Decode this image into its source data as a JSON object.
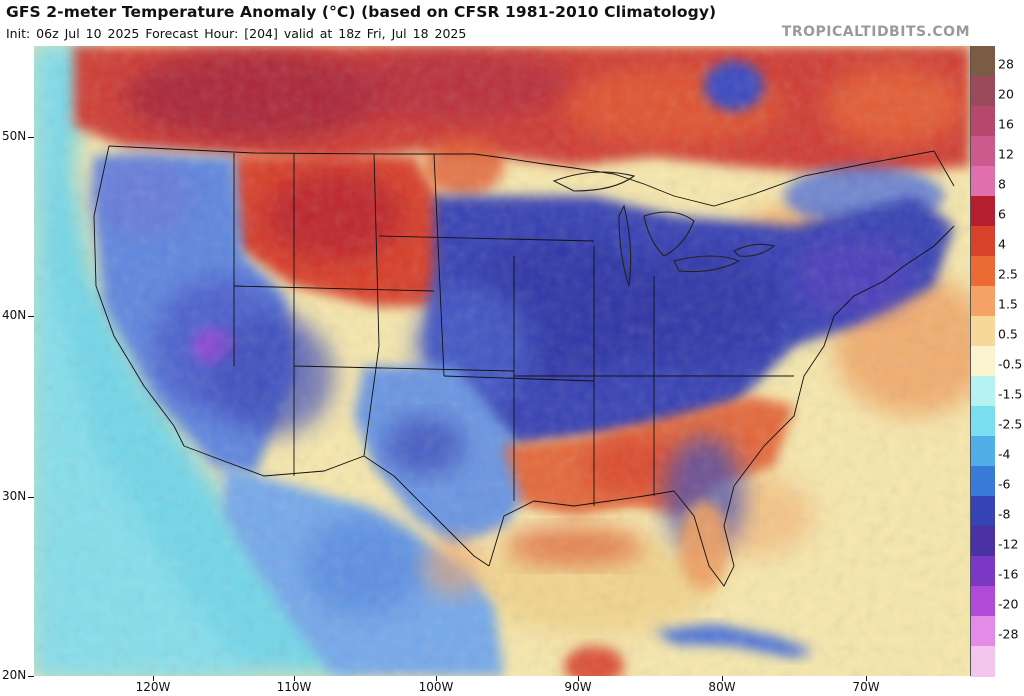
{
  "header": {
    "title": "GFS 2-meter Temperature Anomaly (°C) (based on CFSR 1981-2010 Climatology)",
    "subtitle": "Init: 06z Jul 10 2025   Forecast Hour: [204]   valid at 18z Fri, Jul 18 2025",
    "brand": "TROPICALTIDBITS.COM"
  },
  "axes": {
    "lat_labels": [
      "50N",
      "40N",
      "30N",
      "20N"
    ],
    "lon_labels": [
      "120W",
      "110W",
      "100W",
      "90W",
      "80W",
      "70W"
    ]
  },
  "colorbar": {
    "labels": [
      "28",
      "20",
      "16",
      "12",
      "8",
      "6",
      "4",
      "2.5",
      "1.5",
      "0.5",
      "-0.5",
      "-1.5",
      "-2.5",
      "-4",
      "-6",
      "-8",
      "-12",
      "-16",
      "-20",
      "-28"
    ],
    "colors": [
      "#7b5b44",
      "#9a4a5a",
      "#b8476e",
      "#cc5a8c",
      "#e06fae",
      "#b41e2e",
      "#d8412a",
      "#ec6a34",
      "#f4a265",
      "#f8d79a",
      "#fbf3cf",
      "#b6f2f2",
      "#79def0",
      "#52aee6",
      "#3a7ad8",
      "#3643b4",
      "#4a32a2",
      "#7a38c4",
      "#b24ad8",
      "#e28ce8",
      "#f3c4ee"
    ]
  },
  "palette": {
    "ocean_pacific": "#72d6e8",
    "ocean_atlantic": "#f6e7ac",
    "gulf": "#f1d48e",
    "canada": "#cf3c36",
    "west_conus": "#5f86de",
    "plains_central": "#3c4fbe",
    "midwest_east": "#3943b4",
    "southeast": "#e4673a",
    "mexico": "#74a8ea"
  }
}
